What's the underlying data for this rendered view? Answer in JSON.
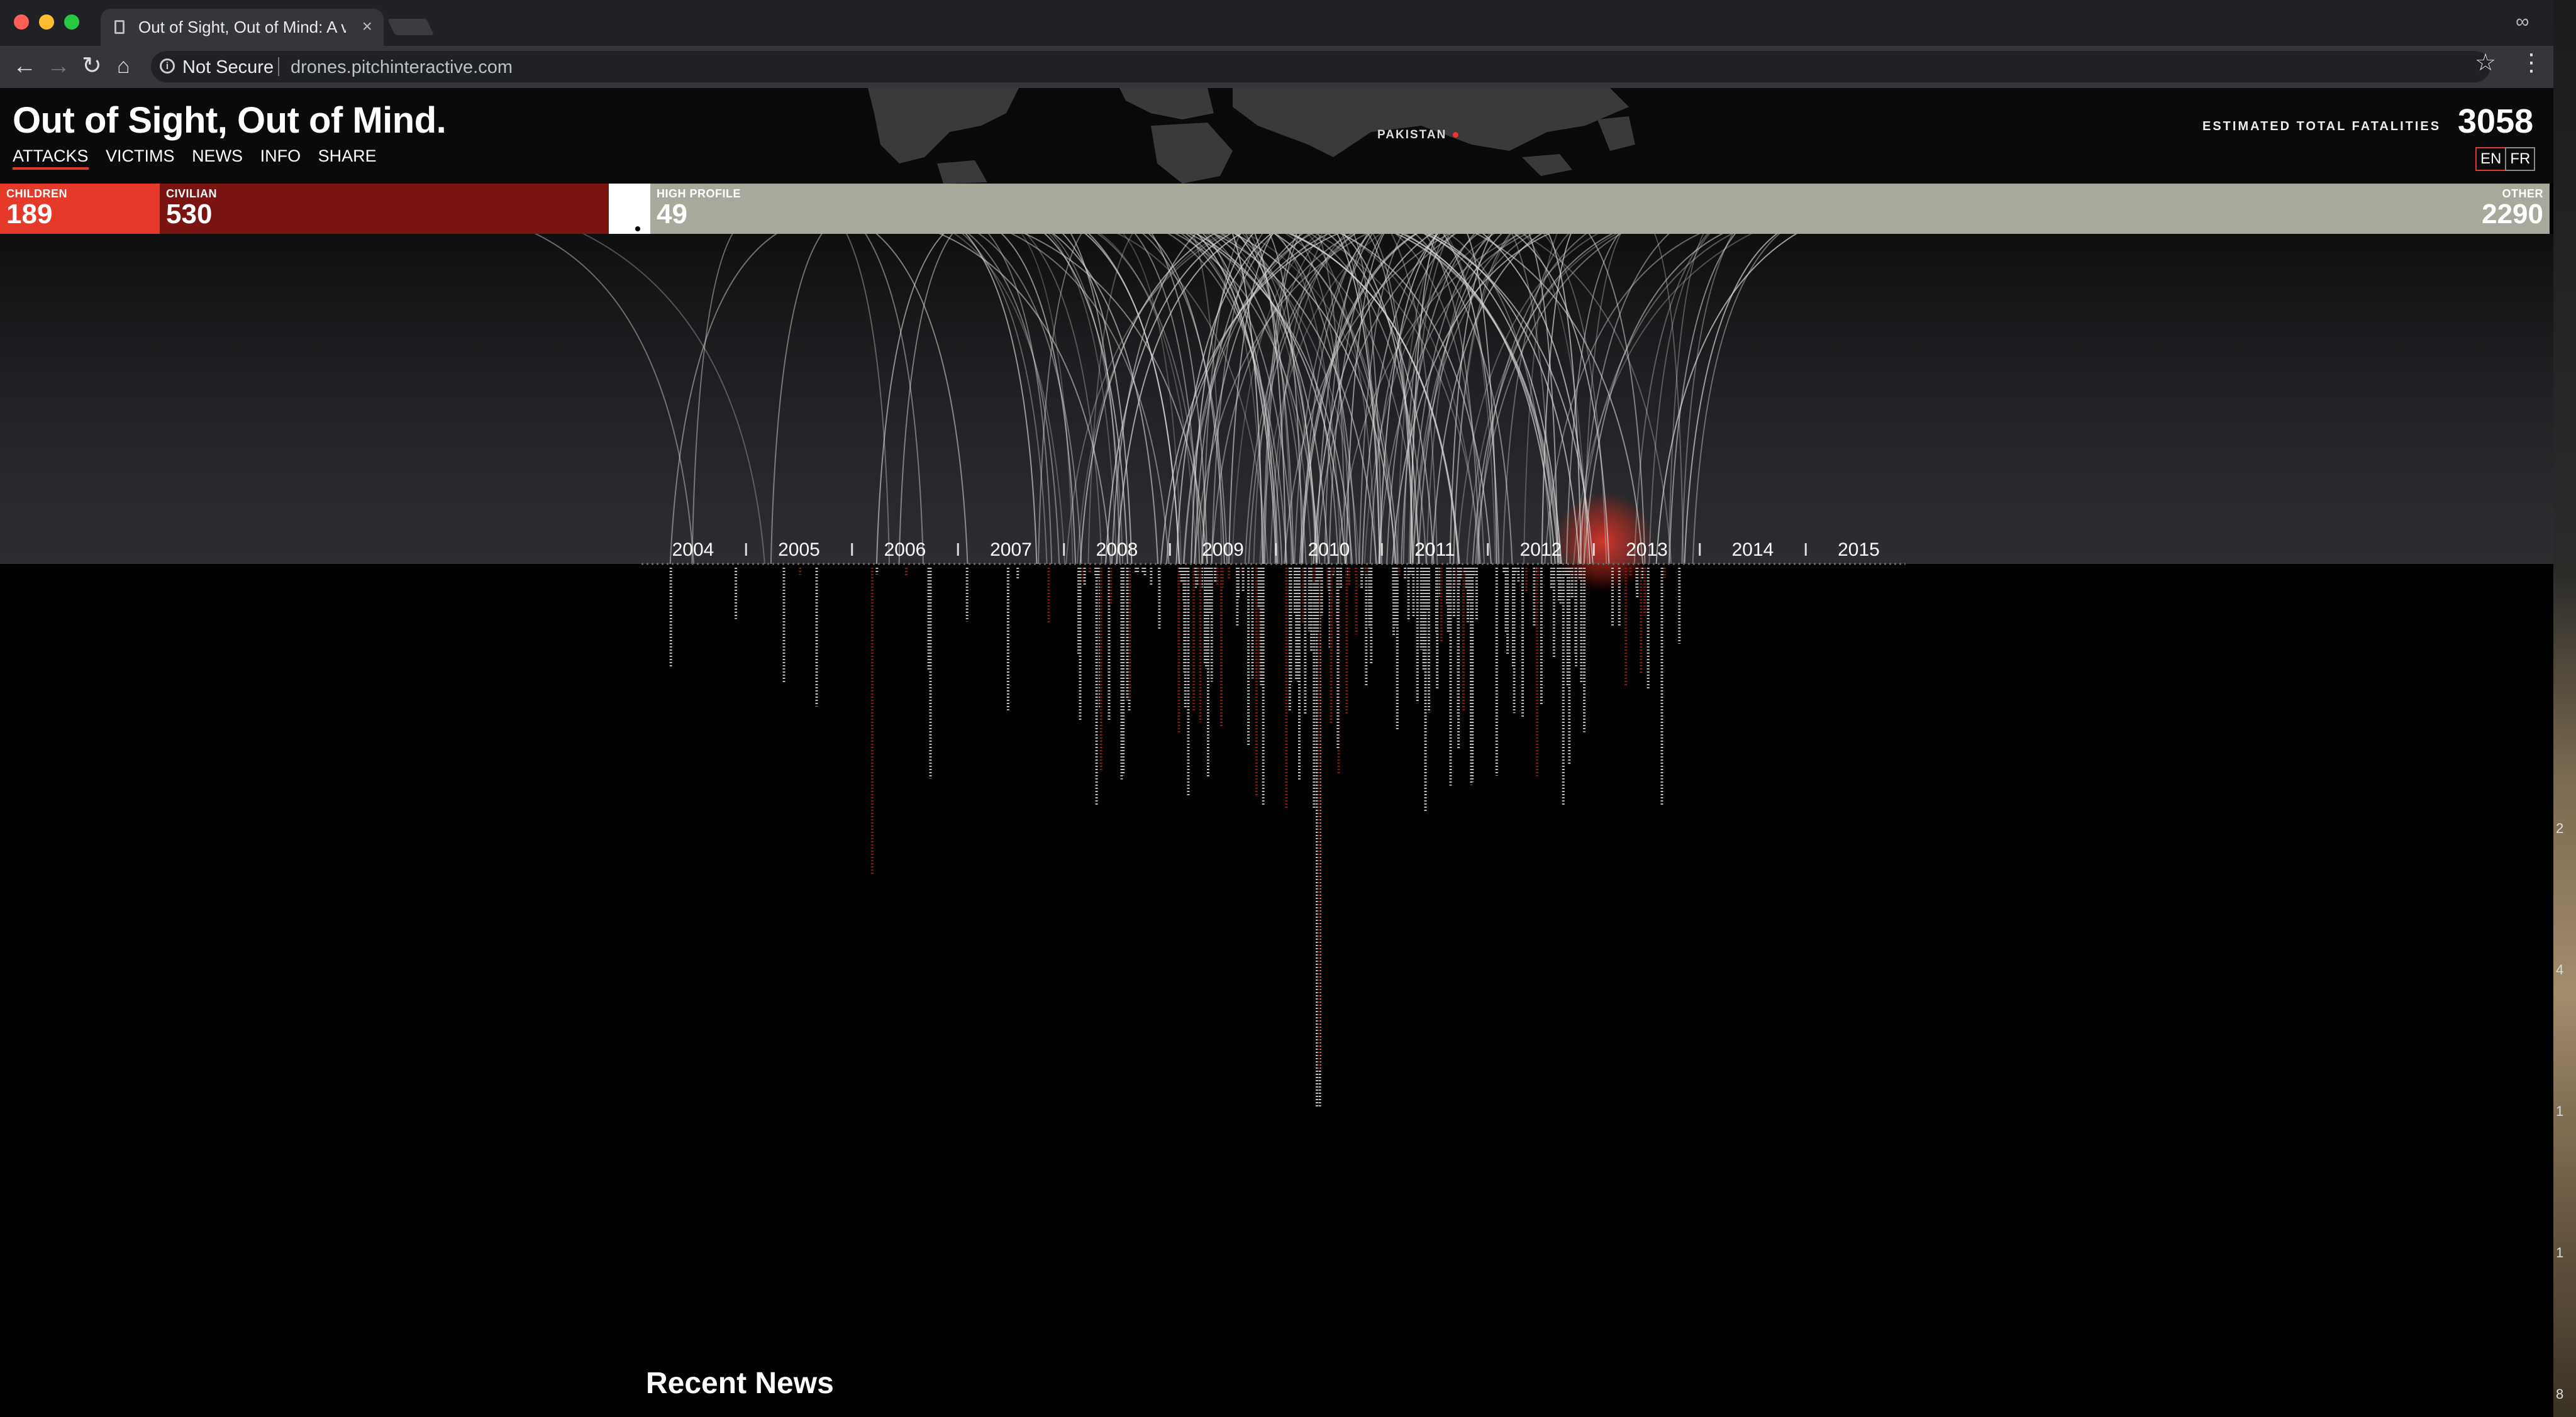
{
  "browser": {
    "tab_title": "Out of Sight, Out of Mind: A vi",
    "security_label": "Not Secure",
    "url": "drones.pitchinteractive.com",
    "traffic_colors": [
      "#ff5f57",
      "#febc2e",
      "#28c840"
    ]
  },
  "header": {
    "title": "Out of Sight, Out of Mind.",
    "nav": [
      "ATTACKS",
      "VICTIMS",
      "NEWS",
      "INFO",
      "SHARE"
    ],
    "active_nav": "ATTACKS",
    "map_label": "PAKISTAN",
    "estimated_label": "ESTIMATED TOTAL FATALITIES",
    "estimated_value": "3058",
    "languages": [
      "EN",
      "FR"
    ],
    "active_language": "EN"
  },
  "categories": [
    {
      "label": "CHILDREN",
      "value": "189",
      "color": "#e5392a"
    },
    {
      "label": "CIVILIAN",
      "value": "530",
      "color": "#7a1410"
    },
    {
      "label": "HIGH PROFILE",
      "value": "49",
      "color": "#a8a99c"
    },
    {
      "label": "OTHER",
      "value": "2290",
      "color": "#a8a99c"
    }
  ],
  "timeline": {
    "years": [
      "2004",
      "2005",
      "2006",
      "2007",
      "2008",
      "2009",
      "2010",
      "2011",
      "2012",
      "2013",
      "2014",
      "2015"
    ],
    "highlight_year": "2013",
    "arc_color": "#dcdcdc",
    "civilian_color": "#8a1a14",
    "other_color": "#bdbdbd"
  },
  "footer": {
    "section_title": "Recent News"
  },
  "side_strip_labels": [
    "2",
    "4",
    "1",
    "1",
    "8"
  ]
}
